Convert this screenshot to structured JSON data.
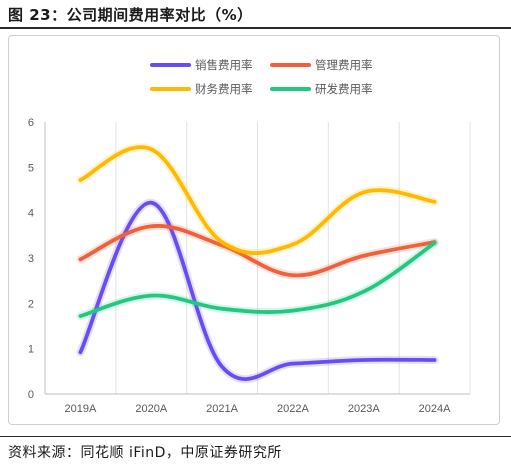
{
  "figure": {
    "title": "图 23：公司期间费用率对比（%）",
    "source": "资料来源：同花顺 iFinD，中原证券研究所"
  },
  "chart_data": {
    "type": "line",
    "title": "",
    "xlabel": "",
    "ylabel": "",
    "categories": [
      "2019A",
      "2020A",
      "2021A",
      "2022A",
      "2023A",
      "2024A"
    ],
    "ylim": [
      0,
      6
    ],
    "yticks": [
      "0",
      "1",
      "2",
      "3",
      "4",
      "5",
      "6"
    ],
    "grid": "vertical",
    "legend_position": "top",
    "smooth": true,
    "series": [
      {
        "name": "销售费用率",
        "color": "#6a4cf5",
        "values": [
          0.92,
          4.22,
          0.6,
          0.67,
          0.75,
          0.75
        ]
      },
      {
        "name": "管理费用率",
        "color": "#f0603a",
        "values": [
          2.97,
          3.7,
          3.28,
          2.62,
          3.05,
          3.35
        ]
      },
      {
        "name": "财务费用率",
        "color": "#ffba00",
        "values": [
          4.72,
          5.4,
          3.35,
          3.3,
          4.45,
          4.24
        ]
      },
      {
        "name": "研发费用率",
        "color": "#22c87f",
        "values": [
          1.72,
          2.17,
          1.88,
          1.84,
          2.26,
          3.33
        ]
      }
    ]
  }
}
